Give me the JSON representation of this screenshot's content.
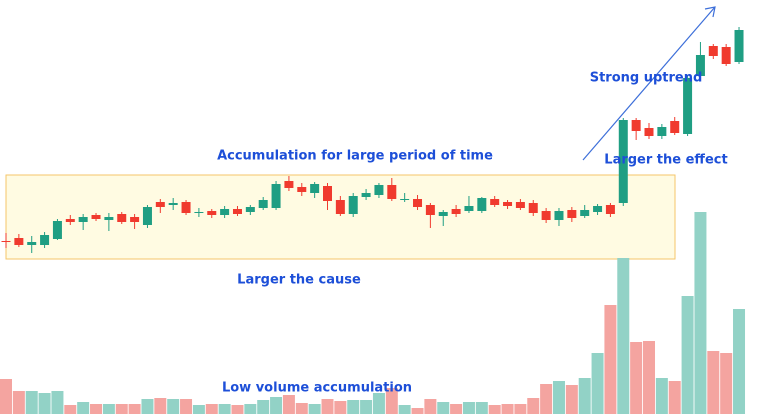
{
  "chart_data": {
    "type": "candlestick",
    "up_color": "#1f9e83",
    "down_color": "#f03a2e",
    "up_volume_color": "#92d2c6",
    "down_volume_color": "#f4a4a0",
    "annotations": [
      "Accumulation for large period of time",
      "Larger the cause",
      "Low volume accumulation",
      "Strong uptrend",
      "Larger the effect"
    ],
    "open": [
      175,
      178,
      171,
      171,
      177,
      197,
      194,
      201,
      196,
      202,
      199,
      191,
      214,
      211,
      214,
      203,
      205,
      201,
      207,
      204,
      208,
      208,
      235,
      229,
      223,
      230,
      216,
      202,
      219,
      221,
      231,
      216,
      217,
      211,
      200,
      207,
      205,
      205,
      217,
      214,
      214,
      213,
      205,
      196,
      206,
      200,
      204,
      211,
      213,
      296,
      288,
      280,
      295,
      282,
      340,
      370,
      369,
      354
    ],
    "high": [
      183,
      182,
      180,
      184,
      197,
      201,
      202,
      203,
      203,
      204,
      202,
      211,
      217,
      218,
      216,
      208,
      207,
      210,
      210,
      211,
      219,
      235,
      240,
      233,
      234,
      233,
      220,
      223,
      227,
      233,
      238,
      223,
      221,
      213,
      206,
      211,
      220,
      219,
      220,
      216,
      217,
      216,
      208,
      208,
      209,
      211,
      212,
      213,
      298,
      298,
      293,
      292,
      299,
      341,
      374,
      372,
      372,
      389
    ],
    "low": [
      168,
      169,
      163,
      168,
      176,
      191,
      186,
      195,
      185,
      192,
      187,
      188,
      203,
      206,
      201,
      199,
      198,
      198,
      200,
      201,
      206,
      206,
      225,
      220,
      218,
      206,
      200,
      199,
      216,
      218,
      215,
      214,
      206,
      188,
      190,
      199,
      203,
      203,
      209,
      207,
      206,
      200,
      193,
      190,
      194,
      198,
      201,
      199,
      210,
      276,
      277,
      277,
      281,
      280,
      338,
      357,
      350,
      352
    ],
    "close": [
      175,
      171,
      174,
      181,
      195,
      194,
      199,
      197,
      199,
      194,
      194,
      209,
      209,
      213,
      203,
      204,
      201,
      207,
      202,
      209,
      216,
      232,
      228,
      224,
      232,
      215,
      202,
      220,
      223,
      231,
      217,
      217,
      209,
      201,
      204,
      202,
      210,
      218,
      211,
      210,
      208,
      203,
      196,
      205,
      198,
      206,
      210,
      202,
      296,
      285,
      280,
      289,
      283,
      338,
      361,
      360,
      352,
      386
    ],
    "volume": [
      35,
      23,
      23,
      21,
      23,
      9,
      12,
      10,
      10,
      10,
      10,
      15,
      16,
      15,
      15,
      9,
      10,
      10,
      9,
      10,
      14,
      17,
      19,
      11,
      10,
      15,
      13,
      14,
      14,
      21,
      26,
      9,
      6,
      15,
      12,
      10,
      12,
      12,
      9,
      10,
      10,
      16,
      30,
      33,
      29,
      36,
      61,
      109,
      156,
      72,
      73,
      36,
      33,
      118,
      202,
      63,
      61,
      105
    ]
  }
}
